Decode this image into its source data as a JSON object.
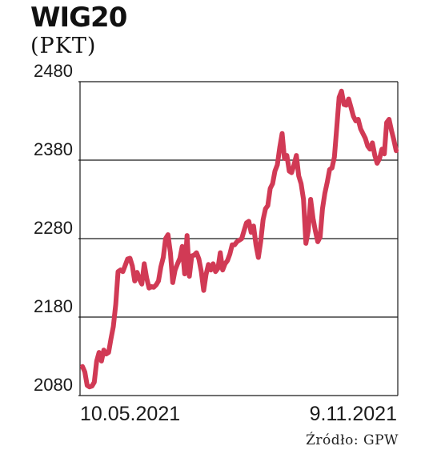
{
  "chart_data": {
    "type": "line",
    "title": "WIG20",
    "subtitle": "(PKT)",
    "source": "Źródło: GPW",
    "y_ticks": [
      "2480",
      "2380",
      "2280",
      "2180",
      "2080"
    ],
    "ylim": [
      2080,
      2480
    ],
    "x_labels": [
      "10.05.2021",
      "9.11.2021"
    ],
    "grid": true,
    "series": [
      {
        "color": "#d13a55",
        "values": [
          2117,
          2110,
          2093,
          2091,
          2092,
          2097,
          2124,
          2135,
          2124,
          2138,
          2133,
          2135,
          2152,
          2168,
          2196,
          2238,
          2240,
          2238,
          2246,
          2254,
          2255,
          2245,
          2226,
          2237,
          2228,
          2222,
          2248,
          2230,
          2217,
          2219,
          2218,
          2221,
          2226,
          2244,
          2256,
          2280,
          2285,
          2262,
          2224,
          2240,
          2248,
          2255,
          2270,
          2235,
          2284,
          2232,
          2258,
          2259,
          2262,
          2254,
          2238,
          2214,
          2234,
          2247,
          2240,
          2248,
          2238,
          2242,
          2262,
          2240,
          2248,
          2252,
          2260,
          2272,
          2272,
          2276,
          2278,
          2280,
          2290,
          2300,
          2302,
          2288,
          2296,
          2272,
          2256,
          2276,
          2304,
          2318,
          2322,
          2344,
          2350,
          2366,
          2374,
          2396,
          2414,
          2382,
          2386,
          2366,
          2364,
          2374,
          2386,
          2360,
          2350,
          2330,
          2274,
          2290,
          2330,
          2306,
          2290,
          2276,
          2282,
          2318,
          2338,
          2352,
          2368,
          2370,
          2384,
          2422,
          2460,
          2468,
          2451,
          2450,
          2458,
          2447,
          2436,
          2430,
          2432,
          2420,
          2414,
          2408,
          2398,
          2394,
          2402,
          2386,
          2376,
          2382,
          2394,
          2388,
          2428,
          2432,
          2418,
          2406,
          2392
        ]
      }
    ]
  }
}
